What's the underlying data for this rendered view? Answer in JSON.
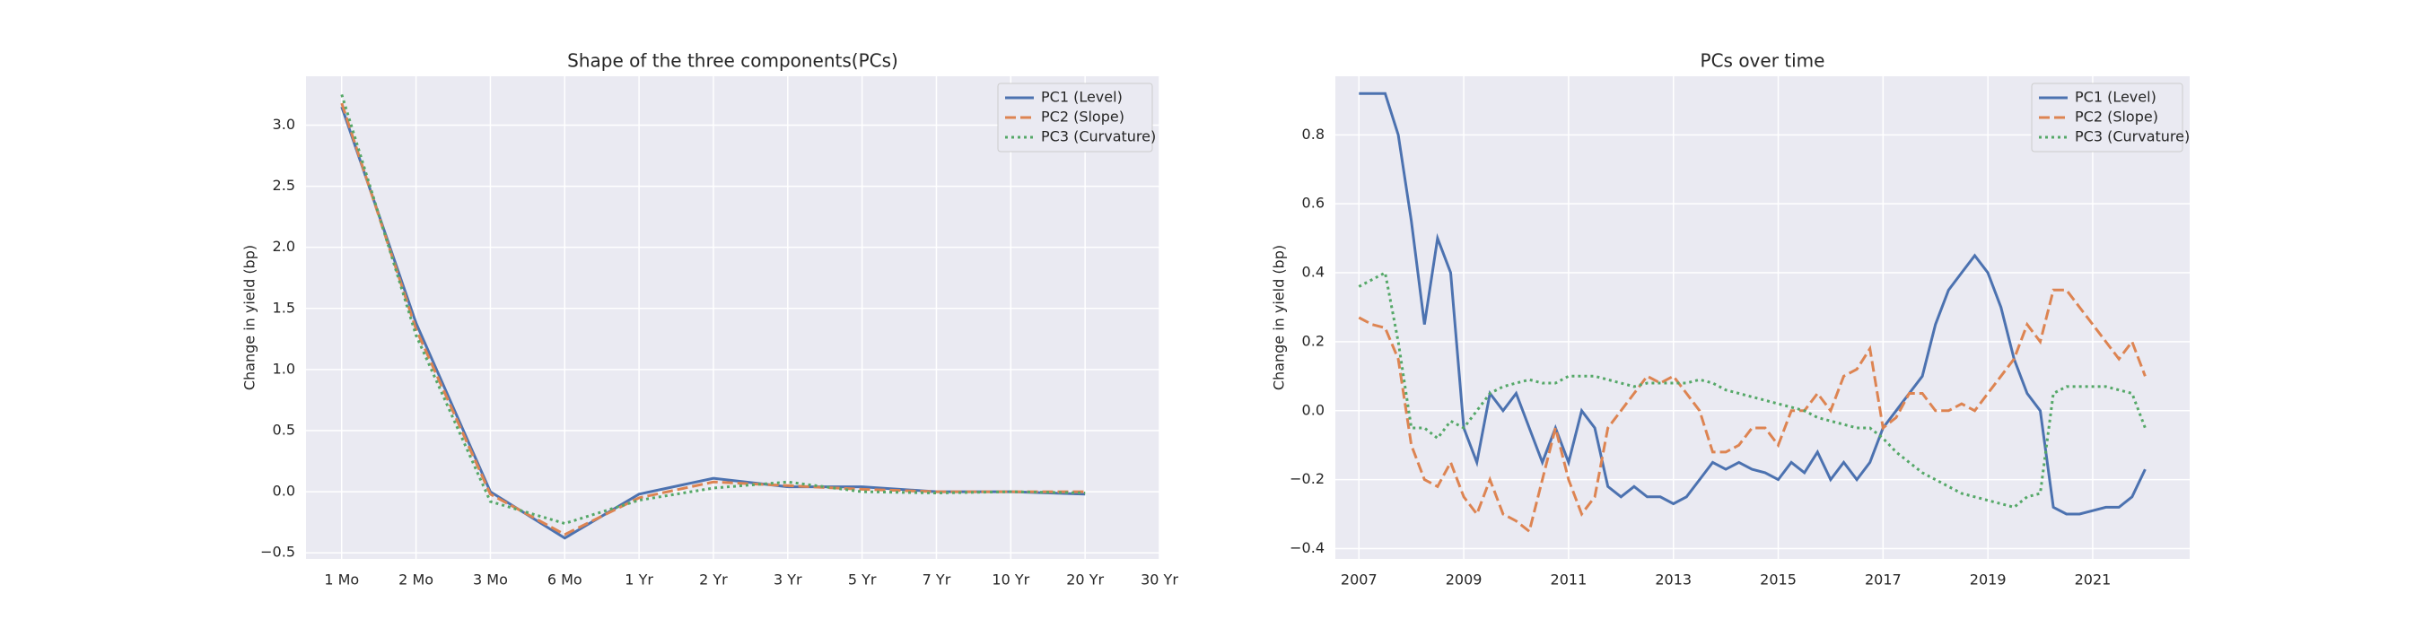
{
  "chart_data": [
    {
      "type": "line",
      "title": "Shape of the three components(PCs)",
      "ylabel": "Change in yield (bp)",
      "categories": [
        "1 Mo",
        "2 Mo",
        "3 Mo",
        "6 Mo",
        "1 Yr",
        "2 Yr",
        "3 Yr",
        "5 Yr",
        "7 Yr",
        "10 Yr",
        "20 Yr",
        "30 Yr"
      ],
      "series": [
        {
          "name": "PC1 (Level)",
          "color": "#4c72b0",
          "linestyle": "solid",
          "values": [
            3.15,
            1.38,
            0.0,
            -0.38,
            -0.02,
            0.11,
            0.04,
            0.04,
            0.0,
            0.0,
            -0.02,
            null
          ]
        },
        {
          "name": "PC2 (Slope)",
          "color": "#dd8452",
          "linestyle": "dashed",
          "values": [
            3.18,
            1.33,
            -0.02,
            -0.35,
            -0.05,
            0.08,
            0.05,
            0.02,
            0.0,
            0.0,
            0.0,
            null
          ]
        },
        {
          "name": "PC3 (Curvature)",
          "color": "#55a868",
          "linestyle": "dotted",
          "values": [
            3.25,
            1.28,
            -0.08,
            -0.26,
            -0.07,
            0.03,
            0.08,
            0.0,
            -0.01,
            0.0,
            -0.01,
            null
          ]
        }
      ],
      "ylim": [
        -0.55,
        3.4
      ],
      "yticks": [
        {
          "value": -0.5,
          "label": "−0.5"
        },
        {
          "value": 0,
          "label": "0.0"
        },
        0.5,
        {
          "value": 1,
          "label": "1.0"
        },
        1.5,
        {
          "value": 2,
          "label": "2.0"
        },
        2.5,
        {
          "value": 3,
          "label": "3.0"
        }
      ],
      "grid": true,
      "legend": "upper right"
    },
    {
      "type": "line",
      "title": "PCs over time",
      "ylabel": "Change in yield (bp)",
      "x": [
        2007.0,
        2007.25,
        2007.5,
        2007.75,
        2008.0,
        2008.25,
        2008.5,
        2008.75,
        2009.0,
        2009.25,
        2009.5,
        2009.75,
        2010.0,
        2010.25,
        2010.5,
        2010.75,
        2011.0,
        2011.25,
        2011.5,
        2011.75,
        2012.0,
        2012.25,
        2012.5,
        2012.75,
        2013.0,
        2013.25,
        2013.5,
        2013.75,
        2014.0,
        2014.25,
        2014.5,
        2014.75,
        2015.0,
        2015.25,
        2015.5,
        2015.75,
        2016.0,
        2016.25,
        2016.5,
        2016.75,
        2017.0,
        2017.25,
        2017.5,
        2017.75,
        2018.0,
        2018.25,
        2018.5,
        2018.75,
        2019.0,
        2019.25,
        2019.5,
        2019.75,
        2020.0,
        2020.25,
        2020.5,
        2020.75,
        2021.0,
        2021.25,
        2021.5,
        2021.75,
        2022.0
      ],
      "series": [
        {
          "name": "PC1 (Level)",
          "color": "#4c72b0",
          "linestyle": "solid",
          "values": [
            0.92,
            0.92,
            0.92,
            0.8,
            0.55,
            0.25,
            0.5,
            0.4,
            -0.05,
            -0.15,
            0.05,
            0.0,
            0.05,
            -0.05,
            -0.15,
            -0.05,
            -0.15,
            0.0,
            -0.05,
            -0.22,
            -0.25,
            -0.22,
            -0.25,
            -0.25,
            -0.27,
            -0.25,
            -0.2,
            -0.15,
            -0.17,
            -0.15,
            -0.17,
            -0.18,
            -0.2,
            -0.15,
            -0.18,
            -0.12,
            -0.2,
            -0.15,
            -0.2,
            -0.15,
            -0.05,
            0.0,
            0.05,
            0.1,
            0.25,
            0.35,
            0.4,
            0.45,
            0.4,
            0.3,
            0.15,
            0.05,
            0.0,
            -0.28,
            -0.3,
            -0.3,
            -0.29,
            -0.28,
            -0.28,
            -0.25,
            -0.17
          ]
        },
        {
          "name": "PC2 (Slope)",
          "color": "#dd8452",
          "linestyle": "dashed",
          "values": [
            0.27,
            0.25,
            0.24,
            0.15,
            -0.1,
            -0.2,
            -0.22,
            -0.15,
            -0.25,
            -0.3,
            -0.2,
            -0.3,
            -0.32,
            -0.35,
            -0.2,
            -0.05,
            -0.2,
            -0.3,
            -0.25,
            -0.05,
            0.0,
            0.05,
            0.1,
            0.08,
            0.1,
            0.05,
            0.0,
            -0.12,
            -0.12,
            -0.1,
            -0.05,
            -0.05,
            -0.1,
            0.0,
            0.0,
            0.05,
            0.0,
            0.1,
            0.12,
            0.18,
            -0.05,
            -0.02,
            0.05,
            0.05,
            0.0,
            0.0,
            0.02,
            0.0,
            0.05,
            0.1,
            0.15,
            0.25,
            0.2,
            0.35,
            0.35,
            0.3,
            0.25,
            0.2,
            0.15,
            0.2,
            0.1
          ]
        },
        {
          "name": "PC3 (Curvature)",
          "color": "#55a868",
          "linestyle": "dotted",
          "values": [
            0.36,
            0.38,
            0.4,
            0.2,
            -0.05,
            -0.05,
            -0.08,
            -0.03,
            -0.05,
            0.0,
            0.05,
            0.07,
            0.08,
            0.09,
            0.08,
            0.08,
            0.1,
            0.1,
            0.1,
            0.09,
            0.08,
            0.07,
            0.08,
            0.08,
            0.08,
            0.08,
            0.09,
            0.08,
            0.06,
            0.05,
            0.04,
            0.03,
            0.02,
            0.01,
            0.0,
            -0.02,
            -0.03,
            -0.04,
            -0.05,
            -0.05,
            -0.08,
            -0.12,
            -0.15,
            -0.18,
            -0.2,
            -0.22,
            -0.24,
            -0.25,
            -0.26,
            -0.27,
            -0.28,
            -0.25,
            -0.24,
            0.05,
            0.07,
            0.07,
            0.07,
            0.07,
            0.06,
            0.05,
            -0.05
          ]
        }
      ],
      "xlim": [
        2006.55,
        2022.85
      ],
      "xticks": [
        2007,
        2009,
        2011,
        2013,
        2015,
        2017,
        2019,
        2021
      ],
      "ylim": [
        -0.43,
        0.97
      ],
      "yticks": [
        {
          "value": -0.4,
          "label": "−0.4"
        },
        {
          "value": -0.2,
          "label": "−0.2"
        },
        {
          "value": 0,
          "label": "0.0"
        },
        0.2,
        0.4,
        0.6,
        0.8
      ],
      "grid": true,
      "legend": "upper right"
    }
  ]
}
